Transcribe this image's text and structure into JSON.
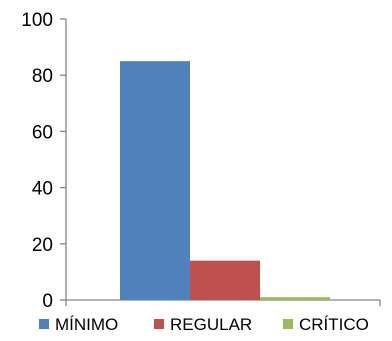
{
  "chart_data": {
    "type": "bar",
    "title": "",
    "xlabel": "",
    "ylabel": "",
    "ylim": [
      0,
      100
    ],
    "yticks": [
      0,
      20,
      40,
      60,
      80,
      100
    ],
    "grid": false,
    "legend_position": "bottom",
    "categories": [
      ""
    ],
    "series": [
      {
        "name": "MÍNIMO",
        "values": [
          85
        ],
        "color": "#4F81BD"
      },
      {
        "name": "REGULAR",
        "values": [
          14
        ],
        "color": "#C0504D"
      },
      {
        "name": "CRÍTICO",
        "values": [
          1
        ],
        "color": "#9BBB59"
      }
    ]
  }
}
